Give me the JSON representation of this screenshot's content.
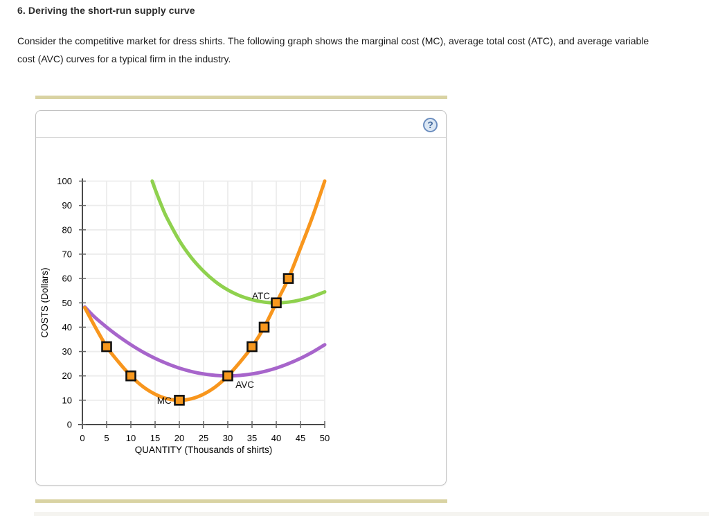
{
  "header": {
    "title": "6. Deriving the short-run supply curve"
  },
  "intro": {
    "lines": [
      "Consider the competitive market for dress shirts. The following graph shows the marginal cost (MC), average total cost (ATC), and average variable",
      "cost (AVC) curves for a typical firm in the industry."
    ]
  },
  "panel": {
    "help_label": "?"
  },
  "colors": {
    "mc": "#f8961d",
    "atc": "#8fd14e",
    "avc": "#a765cb",
    "marker_fill": "#f8981d",
    "marker_stroke": "#111111",
    "grid": "#ececec",
    "axis": "#4a4a4a",
    "tick": "#666666",
    "text": "#000000",
    "tan_bar": "#d9d3a3"
  },
  "chart_data": {
    "type": "line",
    "title": "",
    "xlabel": "QUANTITY (Thousands of shirts)",
    "ylabel": "COSTS (Dollars)",
    "xlim": [
      0,
      50
    ],
    "ylim": [
      0,
      100
    ],
    "x_ticks": [
      0,
      5,
      10,
      15,
      20,
      25,
      30,
      35,
      40,
      45,
      50
    ],
    "y_ticks": [
      0,
      10,
      20,
      30,
      40,
      50,
      60,
      70,
      80,
      90,
      100
    ],
    "grid": true,
    "legend_position": "inline-labels",
    "series": [
      {
        "name": "ATC",
        "color": "#8fd14e",
        "label": {
          "text": "ATC",
          "q": 35.0,
          "v": 51.5,
          "anchor": "start"
        },
        "points": [
          [
            14.4,
            100
          ],
          [
            15,
            96.7
          ],
          [
            16.5,
            89.1
          ],
          [
            17.5,
            84.7
          ],
          [
            20,
            75.6
          ],
          [
            22.5,
            68.5
          ],
          [
            25,
            63
          ],
          [
            27.5,
            58.6
          ],
          [
            30,
            55.3
          ],
          [
            32.5,
            52.9
          ],
          [
            35,
            51.3
          ],
          [
            37.5,
            50.3
          ],
          [
            40,
            50
          ],
          [
            42.5,
            50.3
          ],
          [
            45,
            51.2
          ],
          [
            47.5,
            52.6
          ],
          [
            50,
            54.5
          ]
        ]
      },
      {
        "name": "AVC",
        "color": "#a765cb",
        "label": {
          "text": "AVC",
          "q": 31.6,
          "v": 15.1,
          "anchor": "start"
        },
        "points": [
          [
            0.5,
            48.3
          ],
          [
            2.5,
            44.2
          ],
          [
            5,
            40
          ],
          [
            7.5,
            36.2
          ],
          [
            10,
            32.8
          ],
          [
            12.5,
            29.8
          ],
          [
            15,
            27.2
          ],
          [
            17.5,
            25
          ],
          [
            20,
            23.2
          ],
          [
            22.5,
            21.8
          ],
          [
            25,
            20.8
          ],
          [
            27.5,
            20.2
          ],
          [
            30,
            20
          ],
          [
            32.5,
            20.2
          ],
          [
            35,
            20.8
          ],
          [
            37.5,
            21.8
          ],
          [
            40,
            23.2
          ],
          [
            42.5,
            25
          ],
          [
            45,
            27.2
          ],
          [
            47.5,
            29.8
          ],
          [
            50,
            32.8
          ]
        ]
      },
      {
        "name": "MC",
        "color": "#f8961d",
        "label": {
          "text": "MC",
          "q": 18.4,
          "v": 8.5,
          "anchor": "end"
        },
        "points": [
          [
            0.5,
            48
          ],
          [
            2.5,
            40.6
          ],
          [
            5,
            32
          ],
          [
            7.5,
            25.6
          ],
          [
            10,
            20
          ],
          [
            12.5,
            15.6
          ],
          [
            15,
            12.5
          ],
          [
            17.5,
            10.6
          ],
          [
            20,
            10
          ],
          [
            22.5,
            10.6
          ],
          [
            25,
            12.5
          ],
          [
            27.5,
            15.6
          ],
          [
            30,
            20
          ],
          [
            32.5,
            25.6
          ],
          [
            35,
            32
          ],
          [
            37.5,
            40
          ],
          [
            40,
            50
          ],
          [
            42.5,
            60
          ],
          [
            45,
            72.5
          ],
          [
            47.5,
            85.5
          ],
          [
            50,
            100
          ]
        ]
      }
    ],
    "markers": {
      "on_series": "MC",
      "shape": "square",
      "points": [
        [
          5,
          32
        ],
        [
          10,
          20
        ],
        [
          20,
          10
        ],
        [
          30,
          20
        ],
        [
          35,
          32
        ],
        [
          37.5,
          40
        ],
        [
          40,
          50
        ],
        [
          42.5,
          60
        ]
      ]
    }
  }
}
